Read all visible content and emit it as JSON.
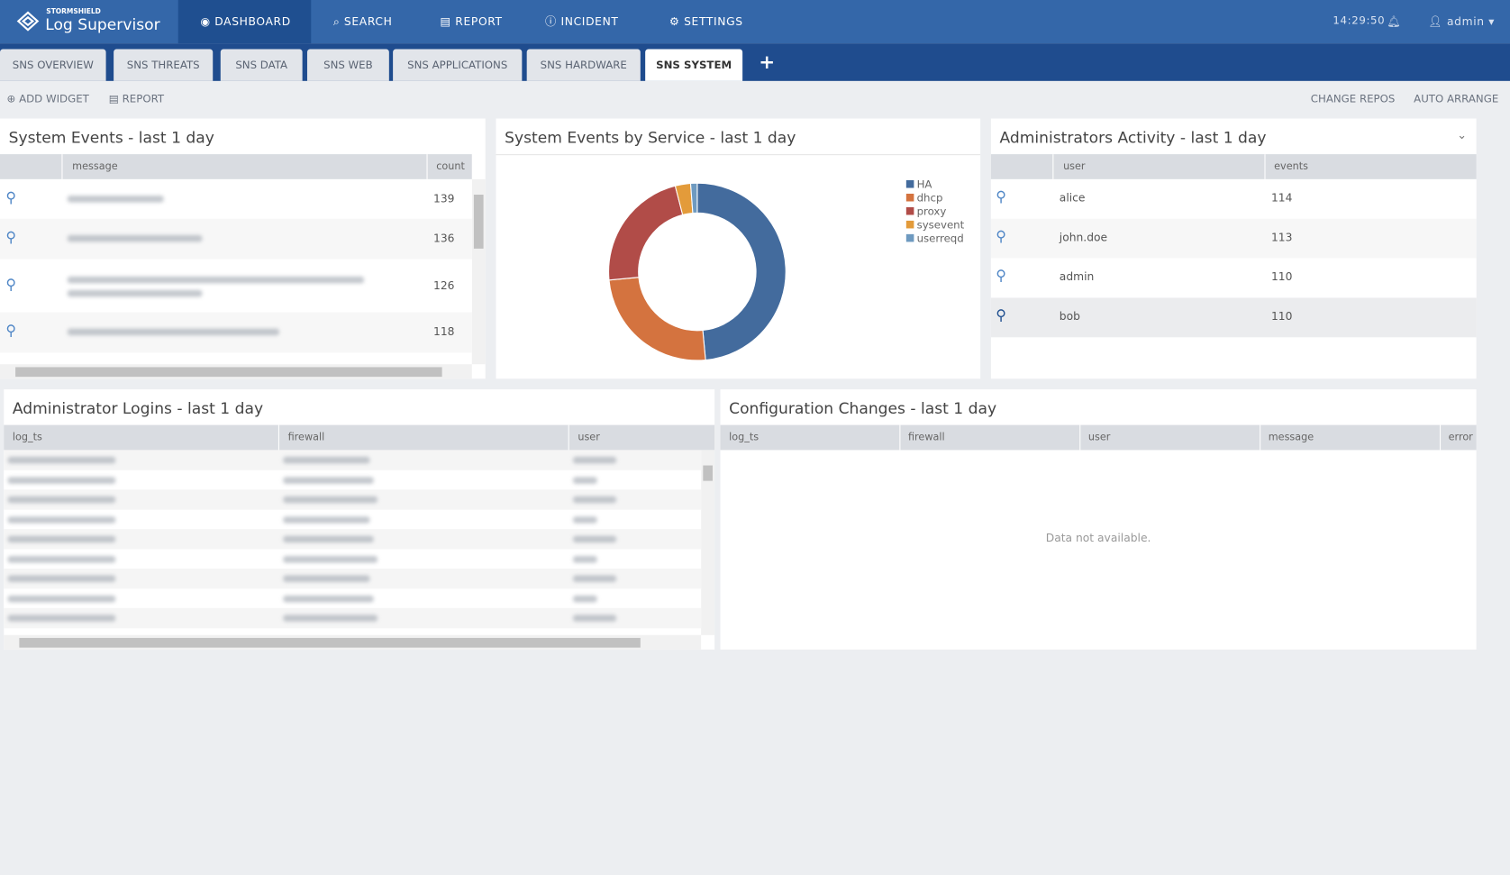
{
  "header": {
    "brand_small": "STORMSHIELD",
    "brand": "Log Supervisor",
    "nav": [
      "DASHBOARD",
      "SEARCH",
      "REPORT",
      "INCIDENT",
      "SETTINGS"
    ],
    "time": "14:29:50",
    "user": "admin"
  },
  "tabs": [
    "SNS OVERVIEW",
    "SNS THREATS",
    "SNS DATA",
    "SNS WEB",
    "SNS APPLICATIONS",
    "SNS HARDWARE",
    "SNS SYSTEM"
  ],
  "toolbar": {
    "left": [
      "ADD WIDGET",
      "REPORT"
    ],
    "right": [
      "CHANGE REPOS",
      "AUTO ARRANGE"
    ]
  },
  "system_events": {
    "title": "System Events - last 1 day",
    "columns": [
      "message",
      "count"
    ],
    "counts": [
      139,
      136,
      126,
      118
    ]
  },
  "chart_data": {
    "type": "pie",
    "title": "System Events by Service - last 1 day",
    "categories": [
      "HA",
      "dhcp",
      "proxy",
      "sysevent",
      "userreqd"
    ],
    "values": [
      48.5,
      25,
      22.5,
      2.8,
      1.2
    ],
    "colors": [
      "#436b9d",
      "#d4733f",
      "#b14c48",
      "#e39b3a",
      "#6e9ac0"
    ],
    "donut": true,
    "legend": "right"
  },
  "admin_activity": {
    "title": "Administrators Activity - last 1 day",
    "columns": [
      "user",
      "events"
    ],
    "rows": [
      [
        "alice",
        114
      ],
      [
        "john.doe",
        113
      ],
      [
        "admin",
        110
      ],
      [
        "bob",
        110
      ]
    ]
  },
  "admin_logins": {
    "title": "Administrator Logins - last 1 day",
    "columns": [
      "log_ts",
      "firewall",
      "user"
    ]
  },
  "config_changes": {
    "title": "Configuration Changes - last 1 day",
    "columns": [
      "log_ts",
      "firewall",
      "user",
      "message",
      "error"
    ],
    "empty": "Data not available."
  }
}
